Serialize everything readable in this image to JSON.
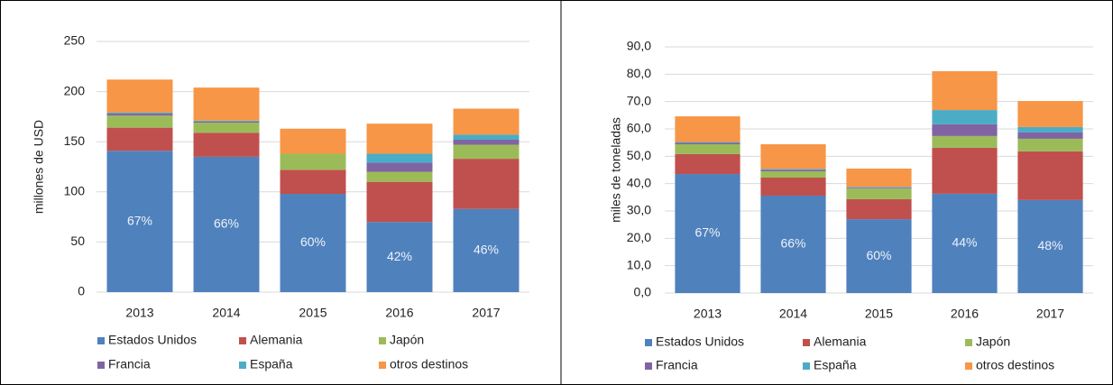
{
  "chart_data": [
    {
      "type": "bar",
      "stacked": true,
      "ylabel": "millones de USD",
      "categories": [
        "2013",
        "2014",
        "2015",
        "2016",
        "2017"
      ],
      "ylim": [
        0,
        250
      ],
      "yticks": [
        0,
        50,
        100,
        150,
        200,
        250
      ],
      "grid": true,
      "series": [
        {
          "name": "Estados Unidos",
          "color": "#4f81bd",
          "values": [
            141,
            135,
            98,
            70,
            83
          ],
          "annotations": [
            "67%",
            "66%",
            "60%",
            "42%",
            "46%"
          ]
        },
        {
          "name": "Alemania",
          "color": "#c0504d",
          "values": [
            23,
            24,
            24,
            40,
            50
          ]
        },
        {
          "name": "Japón",
          "color": "#9bbb59",
          "values": [
            12,
            10,
            16,
            10,
            14
          ]
        },
        {
          "name": "Francia",
          "color": "#8064a2",
          "values": [
            2,
            1,
            0,
            9,
            5
          ]
        },
        {
          "name": "España",
          "color": "#4bacc6",
          "values": [
            1,
            1,
            0,
            9,
            5
          ]
        },
        {
          "name": "otros destinos",
          "color": "#f79646",
          "values": [
            33,
            33,
            25,
            30,
            26
          ]
        }
      ]
    },
    {
      "type": "bar",
      "stacked": true,
      "ylabel": "miles de toneladas",
      "categories": [
        "2013",
        "2014",
        "2015",
        "2016",
        "2017"
      ],
      "ylim": [
        0,
        90
      ],
      "yticks": [
        {
          "value": 0,
          "label": "0,0"
        },
        {
          "value": 10,
          "label": "10,0"
        },
        {
          "value": 20,
          "label": "20,0"
        },
        {
          "value": 30,
          "label": "30,0"
        },
        {
          "value": 40,
          "label": "40,0"
        },
        {
          "value": 50,
          "label": "50,0"
        },
        {
          "value": 60,
          "label": "60,0"
        },
        {
          "value": 70,
          "label": "70,0"
        },
        {
          "value": 80,
          "label": "80,0"
        },
        {
          "value": 90,
          "label": "90,0"
        }
      ],
      "grid": true,
      "series": [
        {
          "name": "Estados Unidos",
          "color": "#4f81bd",
          "values": [
            43.5,
            35.6,
            27.0,
            36.3,
            34.0
          ],
          "annotations": [
            "67%",
            "66%",
            "60%",
            "44%",
            "48%"
          ]
        },
        {
          "name": "Alemania",
          "color": "#c0504d",
          "values": [
            7.3,
            6.6,
            7.3,
            16.8,
            17.8
          ]
        },
        {
          "name": "Japón",
          "color": "#9bbb59",
          "values": [
            3.6,
            2.3,
            3.9,
            4.3,
            4.6
          ]
        },
        {
          "name": "Francia",
          "color": "#8064a2",
          "values": [
            0.5,
            0.6,
            0.3,
            4.3,
            2.3
          ]
        },
        {
          "name": "España",
          "color": "#4bacc6",
          "values": [
            0.3,
            0.3,
            0.3,
            5.2,
            2.0
          ]
        },
        {
          "name": "otros destinos",
          "color": "#f79646",
          "values": [
            9.4,
            9.0,
            6.7,
            14.2,
            9.5
          ]
        }
      ]
    }
  ]
}
